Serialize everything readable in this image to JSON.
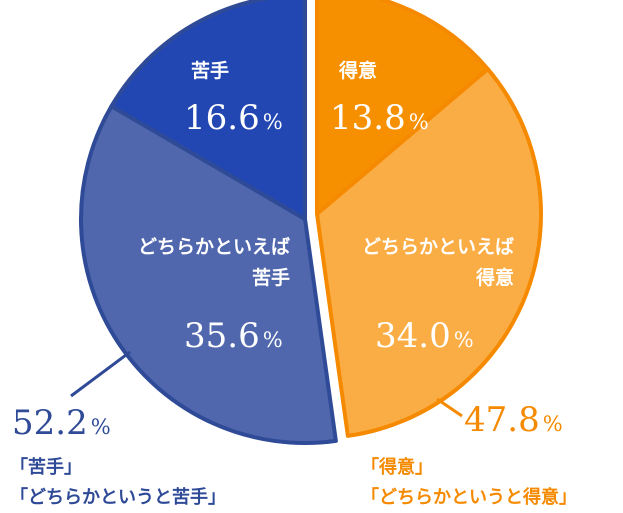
{
  "chart_data": {
    "type": "pie",
    "unit": "%",
    "slices": [
      {
        "label": "得意",
        "value": 13.8,
        "display": "13.8",
        "color": "#f79000"
      },
      {
        "label_lines": [
          "どちらかといえば",
          "得意"
        ],
        "value": 34.0,
        "display": "34.0",
        "color": "#fbad45"
      },
      {
        "label_lines": [
          "どちらかといえば",
          "苦手"
        ],
        "value": 35.6,
        "display": "35.6",
        "color": "#5067ad"
      },
      {
        "label": "苦手",
        "value": 16.6,
        "display": "16.6",
        "color": "#2247b2"
      }
    ],
    "group_totals": [
      {
        "value": 47.8,
        "display": "47.8",
        "lines": [
          "「得意」",
          "「どちらかというと得意」"
        ],
        "color": "#f58a00"
      },
      {
        "value": 52.2,
        "display": "52.2",
        "lines": [
          "「苦手」",
          "「どちらかというと苦手」"
        ],
        "color": "#2f4b97"
      }
    ],
    "colors": {
      "orange_border": "#f58a00",
      "blue_border": "#2f4b97"
    }
  }
}
